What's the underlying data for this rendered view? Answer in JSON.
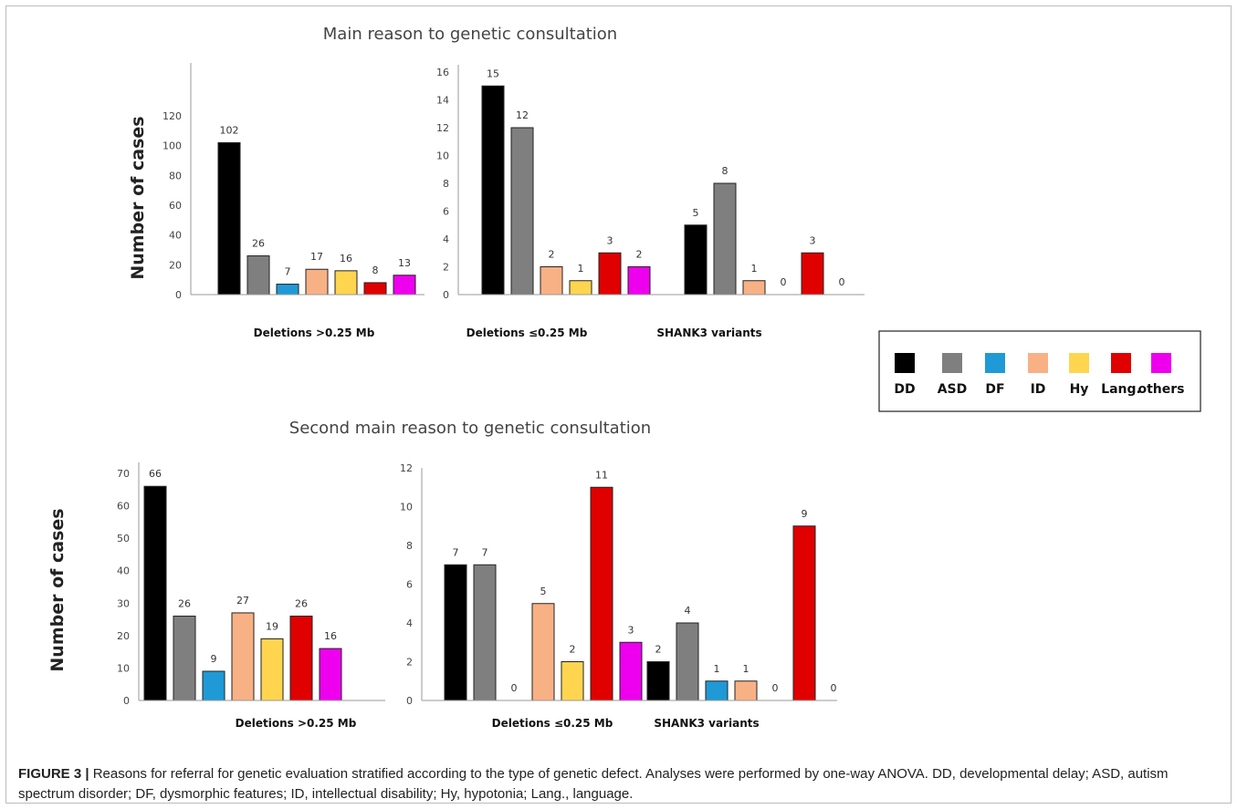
{
  "caption": {
    "label": "FIGURE 3 |",
    "text": " Reasons for referral for genetic evaluation stratified according to the type of genetic defect. Analyses were performed by one-way ANOVA. DD, developmental delay; ASD, autism spectrum disorder; DF, dysmorphic features; ID, intellectual disability; Hy, hypotonia; Lang., language."
  },
  "legend": {
    "items": [
      {
        "label": "DD",
        "color": "#000000"
      },
      {
        "label": "ASD",
        "color": "#7f7f7f"
      },
      {
        "label": "DF",
        "color": "#1f9ad6"
      },
      {
        "label": "ID",
        "color": "#f8b185"
      },
      {
        "label": "Hy",
        "color": "#ffd54f"
      },
      {
        "label": "Lang.",
        "color": "#e00000"
      },
      {
        "label": "others",
        "color": "#ee00ee"
      }
    ]
  },
  "chart_data": [
    {
      "type": "bar",
      "title": "Main reason to genetic consultation",
      "ylabel": "Number of cases",
      "panel": "Deletions >0.25 Mb",
      "categories": [
        "DD",
        "ASD",
        "DF",
        "ID",
        "Hy",
        "Lang.",
        "others"
      ],
      "values": [
        102,
        26,
        7,
        17,
        16,
        8,
        13
      ],
      "ylim": [
        0,
        120
      ],
      "yticks": [
        0,
        20,
        40,
        60,
        80,
        100,
        120
      ],
      "grid": false,
      "legend_position": "right"
    },
    {
      "type": "bar",
      "title": "Main reason to genetic consultation",
      "panel": "Deletions ≤0.25 Mb",
      "categories": [
        "DD",
        "ASD",
        "ID",
        "Hy",
        "Lang.",
        "others"
      ],
      "values": [
        15,
        12,
        2,
        1,
        3,
        2
      ],
      "ylim": [
        0,
        16
      ],
      "yticks": [
        0,
        2,
        4,
        6,
        8,
        10,
        12,
        14,
        16
      ]
    },
    {
      "type": "bar",
      "title": "Main reason to genetic consultation",
      "panel": "SHANK3 variants",
      "categories": [
        "DD",
        "ASD",
        "ID",
        "Hy",
        "Lang.",
        "others"
      ],
      "values": [
        5,
        8,
        1,
        0,
        3,
        0
      ],
      "ylim": [
        0,
        16
      ]
    },
    {
      "type": "bar",
      "title": "Second main reason to genetic consultation",
      "ylabel": "Number of cases",
      "panel": "Deletions >0.25 Mb",
      "categories": [
        "DD",
        "ASD",
        "DF",
        "ID",
        "Hy",
        "Lang.",
        "others"
      ],
      "values": [
        66,
        26,
        9,
        27,
        19,
        26,
        16
      ],
      "ylim": [
        0,
        70
      ],
      "yticks": [
        0,
        10,
        20,
        30,
        40,
        50,
        60,
        70
      ]
    },
    {
      "type": "bar",
      "title": "Second main reason to genetic consultation",
      "panel": "Deletions ≤0.25 Mb",
      "categories": [
        "DD",
        "ASD",
        "DF",
        "ID",
        "Hy",
        "Lang.",
        "others"
      ],
      "values": [
        7,
        7,
        0,
        5,
        2,
        11,
        3
      ],
      "ylim": [
        0,
        12
      ],
      "yticks": [
        0,
        2,
        4,
        6,
        8,
        10,
        12
      ]
    },
    {
      "type": "bar",
      "title": "Second main reason to genetic consultation",
      "panel": "SHANK3 variants",
      "categories": [
        "DD",
        "ASD",
        "DF",
        "ID",
        "Hy",
        "Lang.",
        "others"
      ],
      "values": [
        2,
        4,
        1,
        1,
        0,
        9,
        0
      ],
      "ylim": [
        0,
        12
      ]
    }
  ]
}
